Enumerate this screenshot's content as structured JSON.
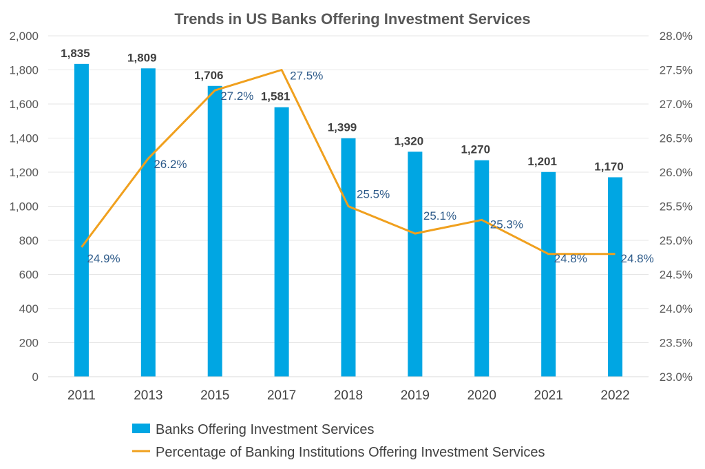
{
  "chart_data": {
    "type": "bar",
    "title": "Trends in US Banks Offering Investment Services",
    "categories": [
      "2011",
      "2013",
      "2015",
      "2017",
      "2018",
      "2019",
      "2020",
      "2021",
      "2022"
    ],
    "series": [
      {
        "name": "Banks Offering Investment Services",
        "type": "bar",
        "axis": "left",
        "color": "#00a6e3",
        "values": [
          1835,
          1809,
          1706,
          1581,
          1399,
          1320,
          1270,
          1201,
          1170
        ],
        "labels": [
          "1,835",
          "1,809",
          "1,706",
          "1,581",
          "1,399",
          "1,320",
          "1,270",
          "1,201",
          "1,170"
        ]
      },
      {
        "name": "Percentage of Banking Institutions Offering Investment Services",
        "type": "line",
        "axis": "right",
        "color": "#f0a01e",
        "values": [
          24.9,
          26.2,
          27.2,
          27.5,
          25.5,
          25.1,
          25.3,
          24.8,
          24.8
        ],
        "labels": [
          "24.9%",
          "26.2%",
          "27.2%",
          "27.5%",
          "25.5%",
          "25.1%",
          "25.3%",
          "24.8%",
          "24.8%"
        ]
      }
    ],
    "y_left": {
      "range": [
        0,
        2000
      ],
      "ticks": [
        0,
        200,
        400,
        600,
        800,
        1000,
        1200,
        1400,
        1600,
        1800,
        2000
      ],
      "tick_labels": [
        "0",
        "200",
        "400",
        "600",
        "800",
        "1,000",
        "1,200",
        "1,400",
        "1,600",
        "1,800",
        "2,000"
      ]
    },
    "y_right": {
      "range": [
        23.0,
        28.0
      ],
      "ticks": [
        23.0,
        23.5,
        24.0,
        24.5,
        25.0,
        25.5,
        26.0,
        26.5,
        27.0,
        27.5,
        28.0
      ],
      "tick_labels": [
        "23.0%",
        "23.5%",
        "24.0%",
        "24.5%",
        "25.0%",
        "25.5%",
        "26.0%",
        "26.5%",
        "27.0%",
        "27.5%",
        "28.0%"
      ]
    },
    "grid": true,
    "legend_position": "bottom"
  }
}
